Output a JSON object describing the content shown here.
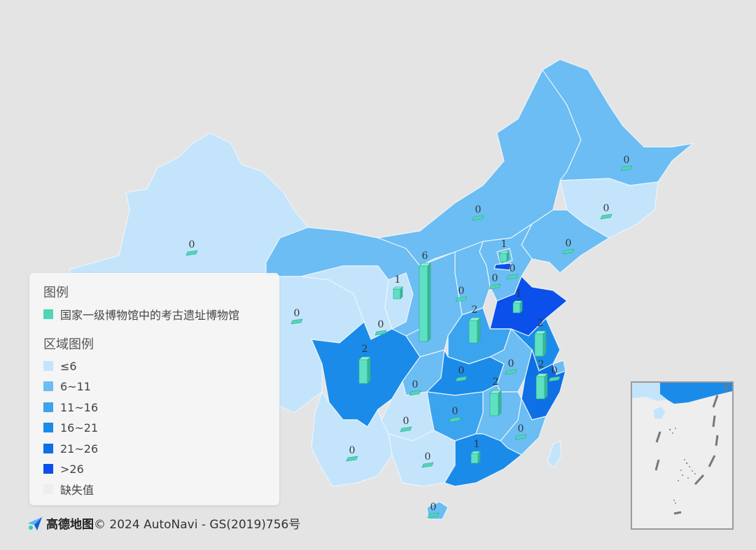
{
  "legend": {
    "title": "图例",
    "marker_label": "国家一级博物馆中的考古遗址博物馆",
    "marker_color": "#4fd6b6",
    "region_title": "区域图例",
    "ranges": [
      {
        "label": "≤6",
        "color": "#c4e4fb"
      },
      {
        "label": "6~11",
        "color": "#6bbdf3"
      },
      {
        "label": "11~16",
        "color": "#3ba4ef"
      },
      {
        "label": "16~21",
        "color": "#1a8be9"
      },
      {
        "label": "21~26",
        "color": "#0f6fe4"
      },
      {
        "label": ">26",
        "color": "#0b50ea"
      },
      {
        "label": "缺失值",
        "color": "#eeeeee"
      }
    ]
  },
  "attribution": {
    "brand": "高德地图",
    "text": "© 2024 AutoNavi - GS(2019)756号"
  },
  "regions": [
    {
      "name": "xinjiang",
      "color": "#c4e4fb",
      "value": 0
    },
    {
      "name": "tibet",
      "color": "#c4e4fb",
      "value": 0
    },
    {
      "name": "qinghai",
      "color": "#c4e4fb",
      "value": 0
    },
    {
      "name": "gansu",
      "color": "#6bbdf3",
      "value": 6
    },
    {
      "name": "inner-mongolia",
      "color": "#6bbdf3",
      "value": 0
    },
    {
      "name": "heilongjiang",
      "color": "#6bbdf3",
      "value": 0
    },
    {
      "name": "jilin",
      "color": "#c4e4fb",
      "value": 0
    },
    {
      "name": "liaoning",
      "color": "#6bbdf3",
      "value": 0
    },
    {
      "name": "hebei",
      "color": "#6bbdf3",
      "value": 0
    },
    {
      "name": "beijing",
      "color": "#6bbdf3",
      "value": 1
    },
    {
      "name": "tianjin",
      "color": "#0b50ea",
      "value": 0
    },
    {
      "name": "shanxi",
      "color": "#6bbdf3",
      "value": 0
    },
    {
      "name": "ningxia",
      "color": "#c4e4fb",
      "value": 1
    },
    {
      "name": "shaanxi",
      "color": "#6bbdf3",
      "value": 0
    },
    {
      "name": "shandong",
      "color": "#0b50ea",
      "value": 1
    },
    {
      "name": "henan",
      "color": "#3ba4ef",
      "value": 2
    },
    {
      "name": "sichuan",
      "color": "#1a8be9",
      "value": 2
    },
    {
      "name": "chongqing",
      "color": "#6bbdf3",
      "value": 0
    },
    {
      "name": "hubei",
      "color": "#1a8be9",
      "value": 0
    },
    {
      "name": "anhui",
      "color": "#6bbdf3",
      "value": 0
    },
    {
      "name": "jiangsu",
      "color": "#1a8be9",
      "value": 2
    },
    {
      "name": "shanghai",
      "color": "#6bbdf3",
      "value": 0
    },
    {
      "name": "zhejiang",
      "color": "#0f6fe4",
      "value": 2
    },
    {
      "name": "hunan",
      "color": "#3ba4ef",
      "value": 2
    },
    {
      "name": "jiangxi",
      "color": "#6bbdf3",
      "value": 0
    },
    {
      "name": "fujian",
      "color": "#6bbdf3",
      "value": 0
    },
    {
      "name": "guizhou",
      "color": "#c4e4fb",
      "value": 0
    },
    {
      "name": "yunnan",
      "color": "#c4e4fb",
      "value": 0
    },
    {
      "name": "guangxi",
      "color": "#c4e4fb",
      "value": 0
    },
    {
      "name": "guangdong",
      "color": "#1a8be9",
      "value": 1
    },
    {
      "name": "hainan",
      "color": "#6bbdf3",
      "value": 0
    },
    {
      "name": "taiwan",
      "color": "#c4e4fb",
      "value": null
    }
  ]
}
